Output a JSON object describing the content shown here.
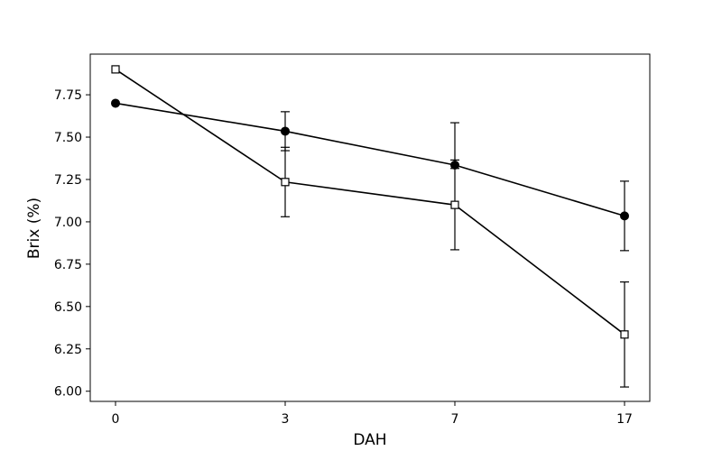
{
  "chart_data": {
    "type": "line",
    "xlabel": "DAH",
    "ylabel": "Brix (%)",
    "categories": [
      "0",
      "3",
      "7",
      "17"
    ],
    "ylim": [
      5.94,
      7.99
    ],
    "yticks": [
      "6.00",
      "6.25",
      "6.50",
      "6.75",
      "7.00",
      "7.25",
      "7.50",
      "7.75"
    ],
    "grid": false,
    "series": [
      {
        "marker": "filled-circle",
        "color": "#000000",
        "values": [
          7.7,
          7.535,
          7.335,
          7.035
        ],
        "errors": [
          0,
          0.115,
          0.02,
          0.205
        ],
        "error_upper": [
          0,
          0.115,
          0.25,
          0.205
        ]
      },
      {
        "marker": "open-square",
        "color": "#000000",
        "values": [
          7.9,
          7.235,
          7.1,
          6.335
        ],
        "errors": [
          0,
          0.205,
          0.265,
          0.31
        ]
      }
    ]
  }
}
